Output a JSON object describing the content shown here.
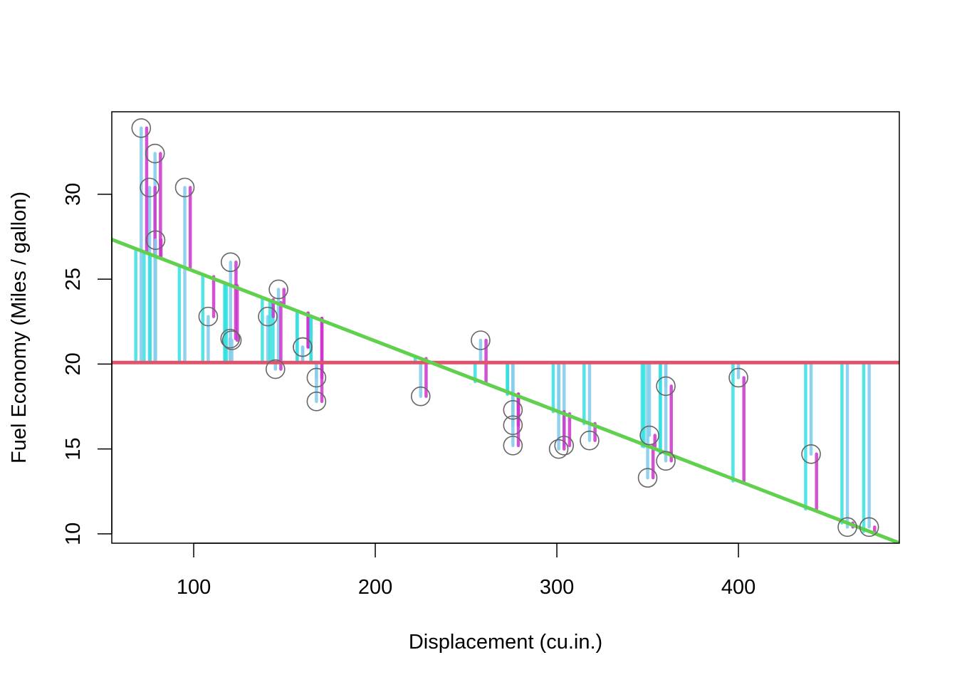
{
  "chart_data": {
    "type": "scatter",
    "title": "",
    "xlabel": "Displacement (cu.in.)",
    "ylabel": "Fuel Economy (Miles / gallon)",
    "xlim": [
      54.9,
      488.6
    ],
    "ylim": [
      9.45,
      34.86
    ],
    "xticks": [
      100,
      200,
      300,
      400
    ],
    "yticks": [
      10,
      15,
      20,
      25,
      30
    ],
    "mean_line": {
      "y": 20.09,
      "color": "#DF536B"
    },
    "regression_line": {
      "intercept": 29.5999,
      "slope": -0.041215,
      "color": "#61D04F"
    },
    "segment_colors": {
      "mean_to_fit": "#33E0E0",
      "mean_to_actual": "#87CDEC",
      "fit_to_actual": "#CC33CC"
    },
    "point_color": "#666666",
    "grid": false,
    "points": [
      {
        "x": 160,
        "y": 21.0
      },
      {
        "x": 160,
        "y": 21.0
      },
      {
        "x": 108,
        "y": 22.8
      },
      {
        "x": 258,
        "y": 21.4
      },
      {
        "x": 360,
        "y": 18.7
      },
      {
        "x": 225,
        "y": 18.1
      },
      {
        "x": 360,
        "y": 14.3
      },
      {
        "x": 146.7,
        "y": 24.4
      },
      {
        "x": 140.8,
        "y": 22.8
      },
      {
        "x": 167.6,
        "y": 19.2
      },
      {
        "x": 167.6,
        "y": 17.8
      },
      {
        "x": 275.8,
        "y": 16.4
      },
      {
        "x": 275.8,
        "y": 17.3
      },
      {
        "x": 275.8,
        "y": 15.2
      },
      {
        "x": 472,
        "y": 10.4
      },
      {
        "x": 460,
        "y": 10.4
      },
      {
        "x": 440,
        "y": 14.7
      },
      {
        "x": 78.7,
        "y": 32.4
      },
      {
        "x": 75.7,
        "y": 30.4
      },
      {
        "x": 71.1,
        "y": 33.9
      },
      {
        "x": 120.1,
        "y": 21.5
      },
      {
        "x": 318,
        "y": 15.5
      },
      {
        "x": 304,
        "y": 15.2
      },
      {
        "x": 350,
        "y": 13.3
      },
      {
        "x": 400,
        "y": 19.2
      },
      {
        "x": 79,
        "y": 27.3
      },
      {
        "x": 120.3,
        "y": 26.0
      },
      {
        "x": 95.1,
        "y": 30.4
      },
      {
        "x": 351,
        "y": 15.8
      },
      {
        "x": 145,
        "y": 19.7
      },
      {
        "x": 301,
        "y": 15.0
      },
      {
        "x": 121,
        "y": 21.4
      }
    ]
  }
}
